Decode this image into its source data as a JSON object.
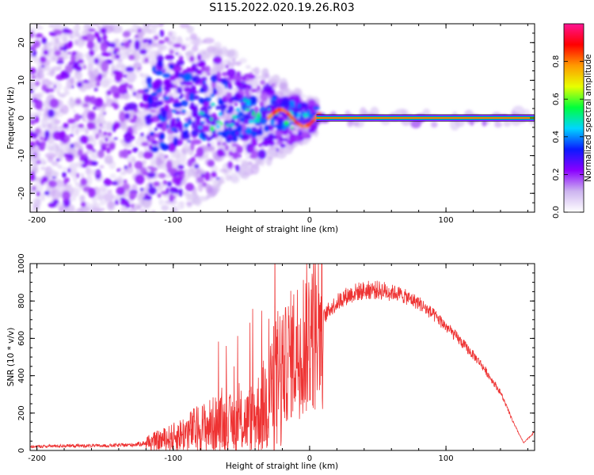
{
  "title": "S115.2022.020.19.26.R03",
  "chart_data": [
    {
      "type": "heatmap",
      "xlabel": "Height of straight line (km)",
      "ylabel": "Frequency (Hz)",
      "xlim": [
        -205,
        165
      ],
      "ylim": [
        -25,
        25
      ],
      "xticks": [
        -200,
        -100,
        0,
        100
      ],
      "yticks": [
        -20,
        -10,
        0,
        10,
        20
      ],
      "colorbar": {
        "label": "Normalized spectral amplitude",
        "range": [
          0,
          1
        ],
        "ticks": [
          0.0,
          0.2,
          0.4,
          0.6,
          0.8
        ],
        "tick_labels": [
          "0.0",
          "0.2",
          "0.4",
          "0.6",
          "0.8"
        ],
        "colors": [
          "#ffffff",
          "#cdb4f0",
          "#8a00ff",
          "#0a1aff",
          "#00d5ff",
          "#00ff3c",
          "#e8ff00",
          "#ff9a00",
          "#ff0000",
          "#ff1493"
        ]
      },
      "tone_band": {
        "x_start": 5,
        "x_end": 165,
        "frequency_hz": 0
      }
    },
    {
      "type": "line",
      "xlabel": "Height of straight line (km)",
      "ylabel": "SNR (10 * v/v)",
      "xlim": [
        -205,
        165
      ],
      "ylim": [
        0,
        1000
      ],
      "xticks": [
        -200,
        -100,
        0,
        100
      ],
      "yticks": [
        0,
        200,
        400,
        600,
        800,
        1000
      ],
      "line_color": "#ee3333",
      "series_envelope": {
        "x": [
          -205,
          -180,
          -150,
          -130,
          -115,
          -100,
          -85,
          -70,
          -55,
          -45,
          -35,
          -25,
          -15,
          -5,
          5,
          15,
          25,
          35,
          45,
          55,
          65,
          80,
          95,
          110,
          125,
          140,
          150,
          157,
          165
        ],
        "y": [
          20,
          25,
          25,
          30,
          45,
          70,
          110,
          140,
          145,
          160,
          220,
          340,
          500,
          580,
          660,
          760,
          820,
          850,
          860,
          855,
          840,
          790,
          700,
          590,
          470,
          310,
          140,
          40,
          100
        ]
      }
    }
  ]
}
